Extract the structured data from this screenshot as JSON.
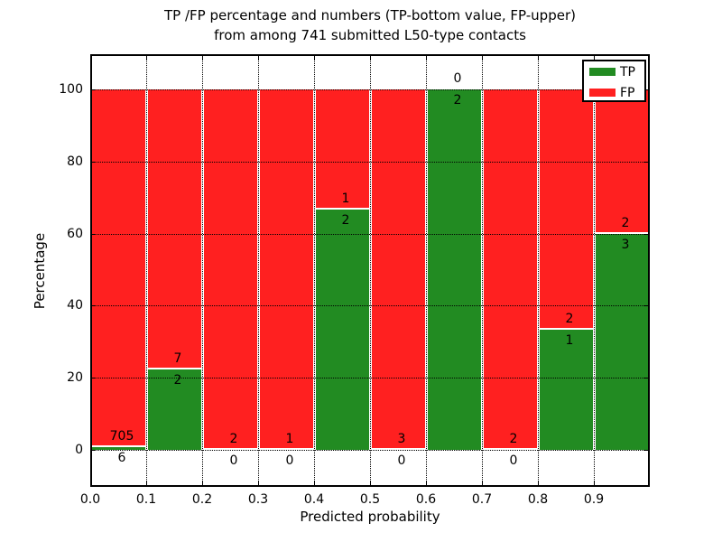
{
  "figure": {
    "title_line1": "TP /FP percentage and numbers (TP-bottom value, FP-upper)",
    "title_line2": "from among 741 submitted L50-type contacts"
  },
  "chart_data": {
    "type": "bar",
    "stacked": true,
    "title": "TP /FP percentage and numbers (TP-bottom value, FP-upper)\nfrom among 741 submitted L50-type contacts",
    "xlabel": "Predicted probability",
    "ylabel": "Percentage",
    "total_contacts": 741,
    "x_tick_labels": [
      "0.0",
      "0.1",
      "0.2",
      "0.3",
      "0.4",
      "0.5",
      "0.6",
      "0.7",
      "0.8",
      "0.9"
    ],
    "y_ticks": [
      0,
      20,
      40,
      60,
      80,
      100
    ],
    "xlim": [
      0.0,
      1.0
    ],
    "ylim": [
      -10.5,
      110
    ],
    "grid": "dotted black, horizontal at y-ticks and vertical at bin edges",
    "bar_label_rule": "FP count printed above green/red boundary, TP count printed below it",
    "legend": {
      "position": "upper right",
      "entries": [
        {
          "label": "TP",
          "color": "#228B22"
        },
        {
          "label": "FP",
          "color": "#FF2020"
        }
      ]
    },
    "colors": {
      "tp": "#228B22",
      "fp": "#FF2020",
      "bar_edge": "#ffffff"
    },
    "bins": [
      {
        "range": [
          0.0,
          0.1
        ],
        "tp": 6,
        "fp": 705,
        "tp_pct": 0.84
      },
      {
        "range": [
          0.1,
          0.2
        ],
        "tp": 2,
        "fp": 7,
        "tp_pct": 22.22
      },
      {
        "range": [
          0.2,
          0.3
        ],
        "tp": 0,
        "fp": 2,
        "tp_pct": 0
      },
      {
        "range": [
          0.3,
          0.4
        ],
        "tp": 0,
        "fp": 1,
        "tp_pct": 0
      },
      {
        "range": [
          0.4,
          0.5
        ],
        "tp": 2,
        "fp": 1,
        "tp_pct": 66.67
      },
      {
        "range": [
          0.5,
          0.6
        ],
        "tp": 0,
        "fp": 3,
        "tp_pct": 0
      },
      {
        "range": [
          0.6,
          0.7
        ],
        "tp": 2,
        "fp": 0,
        "tp_pct": 100
      },
      {
        "range": [
          0.7,
          0.8
        ],
        "tp": 0,
        "fp": 2,
        "tp_pct": 0
      },
      {
        "range": [
          0.8,
          0.9
        ],
        "tp": 1,
        "fp": 2,
        "tp_pct": 33.33
      },
      {
        "range": [
          0.9,
          1.0
        ],
        "tp": 3,
        "fp": 2,
        "tp_pct": 60
      }
    ]
  }
}
